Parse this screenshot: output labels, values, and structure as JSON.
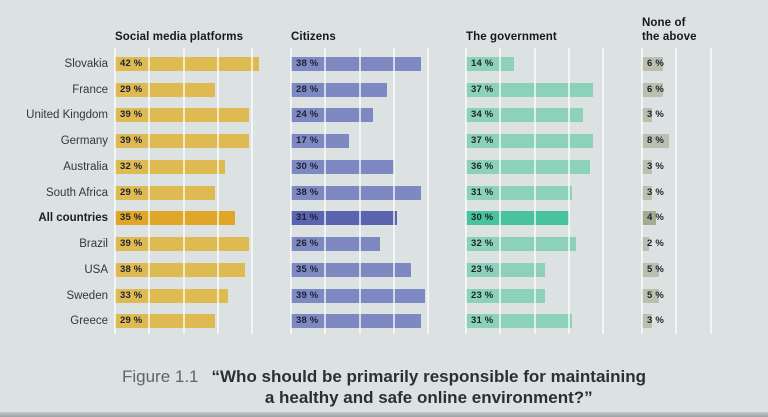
{
  "page": {
    "background": "#dce1e2"
  },
  "chart_data": {
    "type": "bar",
    "orientation": "horizontal",
    "categories": [
      "Slovakia",
      "France",
      "United Kingdom",
      "Germany",
      "Australia",
      "South Africa",
      "All countries",
      "Brazil",
      "USA",
      "Sweden",
      "Greece"
    ],
    "emphasized_category": "All countries",
    "value_suffix": " %",
    "axis": {
      "gridline_interval_pct": 10,
      "panel_max_pct": [
        40,
        40,
        40,
        20
      ],
      "grid": true
    },
    "series": [
      {
        "name": "Social media platforms",
        "color": "#dfba52",
        "emphasis_color": "#dfa629",
        "values": [
          42,
          29,
          39,
          39,
          32,
          29,
          35,
          39,
          38,
          33,
          29
        ]
      },
      {
        "name": "Citizens",
        "color": "#7e88c2",
        "emphasis_color": "#5a64af",
        "values": [
          38,
          28,
          24,
          17,
          30,
          38,
          31,
          26,
          35,
          39,
          38
        ]
      },
      {
        "name": "The government",
        "color": "#8cd2b8",
        "emphasis_color": "#4ac29b",
        "values": [
          14,
          37,
          34,
          37,
          36,
          31,
          30,
          32,
          23,
          23,
          31
        ]
      },
      {
        "name": "None of the above",
        "name_lines": [
          "None of",
          "the above"
        ],
        "color": "#bcbfad",
        "emphasis_color": "#a6aa91",
        "values": [
          6,
          6,
          3,
          8,
          3,
          3,
          4,
          2,
          5,
          5,
          3
        ]
      }
    ]
  },
  "caption": {
    "figure_label": "Figure 1.1",
    "line1": "“Who should be primarily responsible for maintaining",
    "line2": "a healthy and safe online environment?”"
  }
}
